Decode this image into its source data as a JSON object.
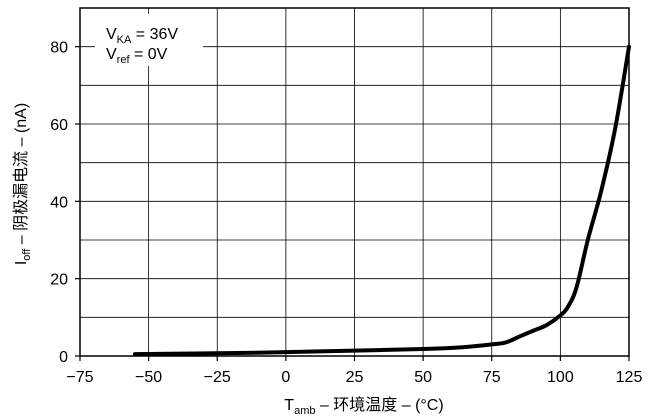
{
  "chart_data": {
    "type": "line",
    "xlabel": {
      "main": "T",
      "sub": "amb",
      "rest": " –  环境温度  – (°C)"
    },
    "ylabel": {
      "main": "I",
      "sub": "off",
      "rest": " – 阴极漏电流  – (nA)"
    },
    "xlim": [
      -75,
      125
    ],
    "ylim": [
      0,
      90
    ],
    "x_ticks": [
      -75,
      -50,
      -25,
      0,
      25,
      50,
      75,
      100,
      125
    ],
    "x_tick_labels": [
      "−75",
      "−50",
      "−25",
      "0",
      "25",
      "50",
      "75",
      "100",
      "125"
    ],
    "y_ticks": [
      0,
      20,
      40,
      60,
      80
    ],
    "y_tick_labels": [
      "0",
      "20",
      "40",
      "60",
      "80"
    ],
    "grid": true,
    "annotations": [
      {
        "main": "V",
        "sub": "KA",
        "rest": " = 36V"
      },
      {
        "main": "V",
        "sub": "ref",
        "rest": " = 0V"
      }
    ],
    "series": [
      {
        "color": "#000000",
        "x": [
          -55,
          -25,
          0,
          25,
          50,
          65,
          75,
          80,
          85,
          90,
          95,
          100,
          103,
          106,
          110,
          115,
          120,
          125
        ],
        "y": [
          0.5,
          0.7,
          1.0,
          1.4,
          1.8,
          2.3,
          3.0,
          3.5,
          5.0,
          6.5,
          8.0,
          10.5,
          13.0,
          18.0,
          30.0,
          43.0,
          59.0,
          80.0
        ]
      }
    ]
  }
}
